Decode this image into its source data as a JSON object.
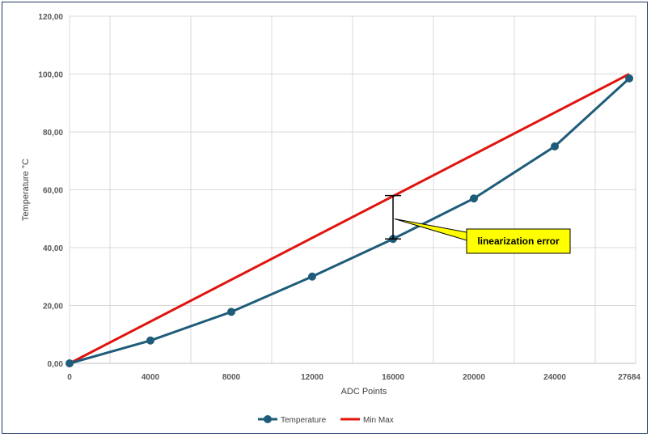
{
  "chart_data": {
    "type": "line",
    "xlabel": "ADC Points",
    "ylabel": "Temperature °C",
    "ylim": [
      0,
      120
    ],
    "y_ticks": [
      "0,00",
      "20,00",
      "40,00",
      "60,00",
      "80,00",
      "100,00",
      "120,00"
    ],
    "x_tick_labels": [
      "0",
      "4000",
      "8000",
      "12000",
      "16000",
      "20000",
      "24000",
      "27684"
    ],
    "grid": "vertical and horizontal",
    "legend_position": "bottom",
    "series": [
      {
        "name": "Temperature",
        "color": "#1f5c7a",
        "marker": "circle",
        "x": [
          0,
          4000,
          8000,
          12000,
          16000,
          20000,
          24000,
          27684
        ],
        "values": [
          0,
          7.9,
          17.8,
          30,
          43,
          57,
          75,
          98.5
        ]
      },
      {
        "name": "Min Max",
        "color": "#e0140e",
        "marker": "none",
        "x": [
          0,
          27684
        ],
        "values": [
          0,
          100
        ]
      }
    ],
    "annotations": [
      {
        "text": "linearization error",
        "x": 16000,
        "y_from": 43,
        "y_to": 58,
        "box_color": "#ffff00"
      }
    ]
  }
}
